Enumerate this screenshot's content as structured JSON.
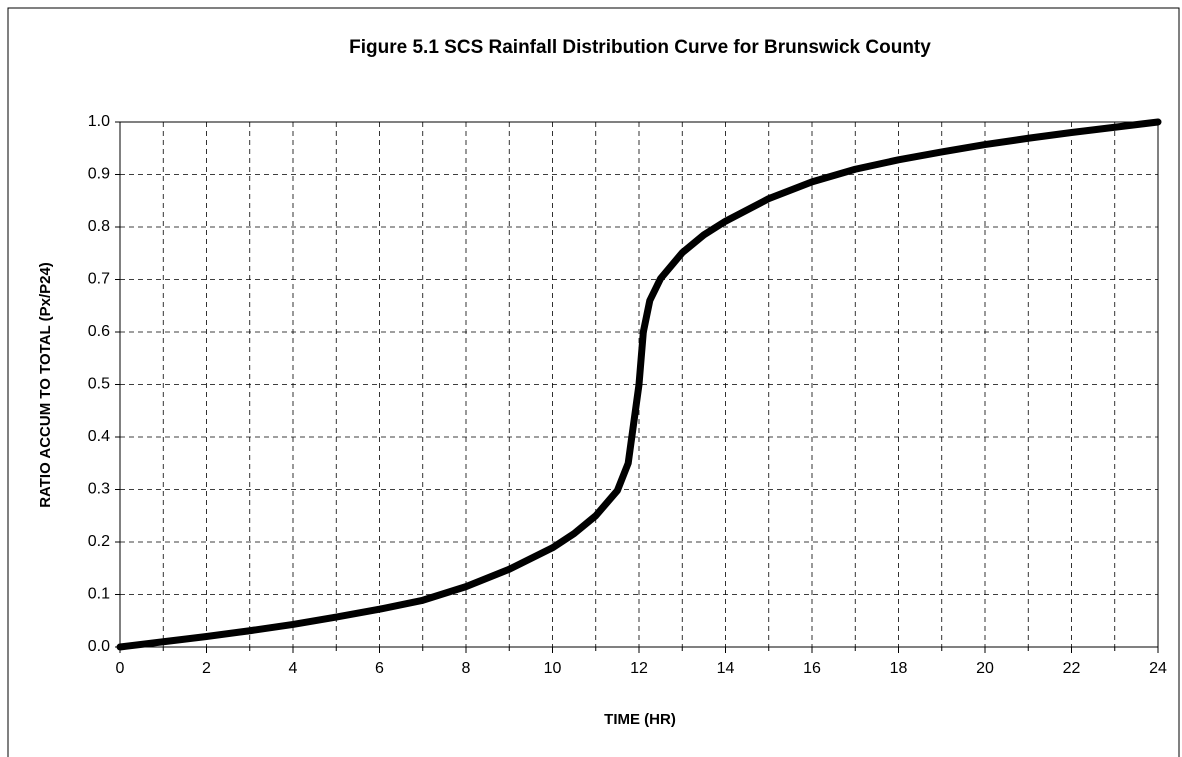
{
  "chart_data": {
    "type": "line",
    "title": "Figure 5.1 SCS Rainfall Distribution Curve for Brunswick County",
    "x_label": "TIME (HR)",
    "y_label": "RATIO ACCUM TO TOTAL (Px/P24)",
    "x": [
      0,
      1,
      2,
      3,
      4,
      5,
      6,
      7,
      8,
      9,
      10,
      10.5,
      11,
      11.5,
      11.75,
      12,
      12.1,
      12.25,
      12.5,
      13,
      13.5,
      14,
      15,
      16,
      17,
      18,
      19,
      20,
      21,
      22,
      23,
      24
    ],
    "series": [
      {
        "name": "SCS",
        "color": "#000000",
        "values": [
          0,
          0.01,
          0.02,
          0.031,
          0.043,
          0.057,
          0.072,
          0.089,
          0.115,
          0.148,
          0.189,
          0.216,
          0.25,
          0.298,
          0.35,
          0.5,
          0.6,
          0.66,
          0.702,
          0.751,
          0.785,
          0.811,
          0.854,
          0.886,
          0.91,
          0.928,
          0.943,
          0.957,
          0.969,
          0.98,
          0.99,
          1.0
        ]
      }
    ],
    "xlim": [
      0,
      24
    ],
    "xticks": [
      0,
      2,
      4,
      6,
      8,
      10,
      12,
      14,
      16,
      18,
      20,
      22,
      24
    ],
    "xminor_ticks": [
      1,
      3,
      5,
      7,
      9,
      11,
      13,
      15,
      17,
      19,
      21,
      23
    ],
    "ylim": [
      0,
      1
    ],
    "yticks": [
      {
        "value": 0,
        "label": "0.0"
      },
      0.1,
      0.2,
      0.3,
      0.4,
      0.5,
      0.6,
      0.7,
      0.8,
      0.9,
      {
        "value": 1,
        "label": "1.0"
      }
    ],
    "grid": true
  }
}
